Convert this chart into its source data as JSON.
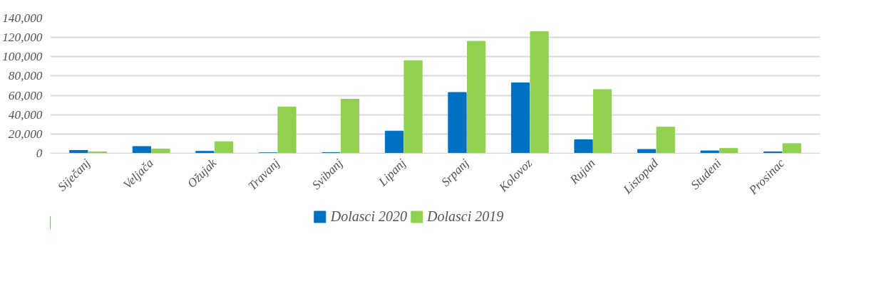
{
  "chart_data": {
    "type": "bar",
    "categories": [
      "Siječanj",
      "Veljača",
      "Ožujak",
      "Travanj",
      "Svibanj",
      "Lipanj",
      "Srpanj",
      "Kolovoz",
      "Rujan",
      "Listopad",
      "Studeni",
      "Prosinac"
    ],
    "series": [
      {
        "name": "Dolasci 2020",
        "color": "#0070c0",
        "values": [
          3000,
          7000,
          2000,
          500,
          800,
          23000,
          63000,
          73000,
          14000,
          4000,
          2500,
          1500
        ]
      },
      {
        "name": "Dolasci 2019",
        "color": "#92d050",
        "values": [
          1500,
          4500,
          12000,
          48000,
          56000,
          96000,
          116000,
          126000,
          66000,
          27000,
          5000,
          10000
        ]
      }
    ],
    "ylim": [
      0,
      140000
    ],
    "yticks": [
      {
        "value": 0,
        "label": "0"
      },
      {
        "value": 20000,
        "label": "20,000"
      },
      {
        "value": 40000,
        "label": "40,000"
      },
      {
        "value": 60000,
        "label": "60,000"
      },
      {
        "value": 80000,
        "label": "80,000"
      },
      {
        "value": 100000,
        "label": "100,000"
      },
      {
        "value": 120000,
        "label": "120,000"
      },
      {
        "value": 140000,
        "label": "140,000"
      }
    ],
    "grid": "y",
    "legend": "bottom"
  }
}
